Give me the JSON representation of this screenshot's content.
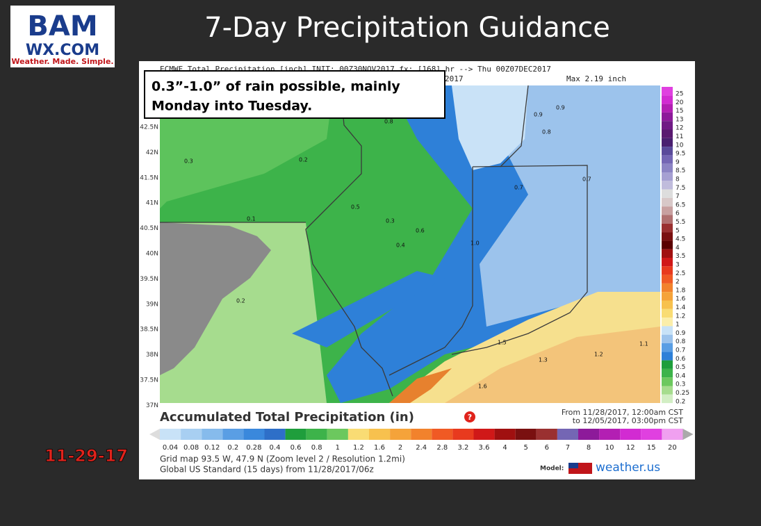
{
  "logo": {
    "top": "BAM",
    "middle": "WX.COM",
    "bottom": "Weather. Made. Simple."
  },
  "title": "7-Day Precipitation Guidance",
  "date": "11-29-17",
  "annotation": {
    "line1": "0.3”-1.0” of rain possible, mainly",
    "line2": "Monday into Tuesday."
  },
  "map": {
    "header": "ECMWF Total Precipitation [inch] INIT: 00Z30NOV2017 fx: [168] hr --> Thu 00Z07DEC2017",
    "header2": "2017",
    "max": "Max 2.19 inch",
    "lat_labels": [
      "42.5N",
      "42N",
      "41.5N",
      "41N",
      "40.5N",
      "40N",
      "39.5N",
      "39N",
      "38.5N",
      "38N",
      "37.5N",
      "37N"
    ],
    "value_labels": [
      "0.9",
      "0.9",
      "0.8",
      "0.7",
      "0.5",
      "0.3",
      "0.6",
      "0.4",
      "0.2",
      "1.0",
      "1.5",
      "1.3",
      "1.2",
      "1.6",
      "0.1",
      "0.3",
      "0.2",
      "1.1",
      "0.8",
      "0.7"
    ],
    "scale": [
      "25",
      "20",
      "15",
      "13",
      "12",
      "11",
      "10",
      "9.5",
      "9",
      "8.5",
      "8",
      "7.5",
      "7",
      "6.5",
      "6",
      "5.5",
      "5",
      "4.5",
      "4",
      "3.5",
      "3",
      "2.5",
      "2",
      "1.8",
      "1.6",
      "1.4",
      "1.2",
      "1",
      "0.9",
      "0.8",
      "0.7",
      "0.6",
      "0.5",
      "0.4",
      "0.3",
      "0.25",
      "0.2"
    ]
  },
  "legend": {
    "title": "Accumulated Total Precipitation (in)",
    "from": "From 11/28/2017, 12:00am CST",
    "to": "to 12/05/2017, 03:00pm CST",
    "labels": [
      "0.04",
      "0.08",
      "0.12",
      "0.2",
      "0.28",
      "0.4",
      "0.6",
      "0.8",
      "1",
      "1.2",
      "1.6",
      "2",
      "2.4",
      "2.8",
      "3.2",
      "3.6",
      "4",
      "5",
      "6",
      "7",
      "8",
      "10",
      "12",
      "15",
      "20"
    ]
  },
  "footer": {
    "grid": "Grid map 93.5 W, 47.9 N (Zoom level 2 / Resolution 1.2mi)",
    "model_run": "Global US Standard (15 days) from 11/28/2017/06z",
    "model_label": "Model:",
    "brand": "weather.us"
  }
}
